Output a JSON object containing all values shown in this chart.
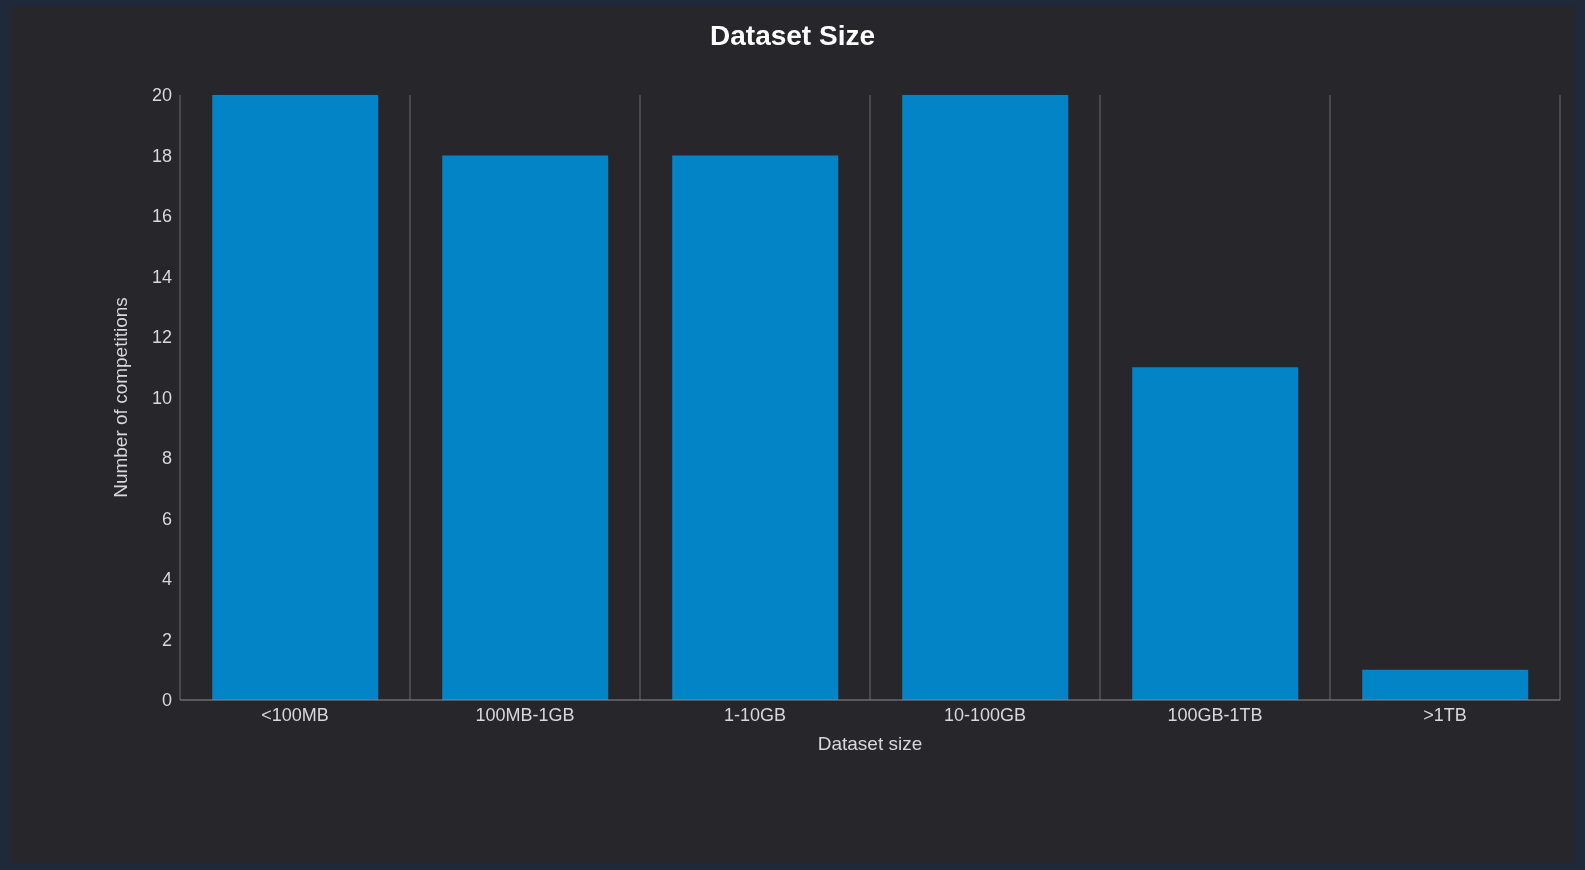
{
  "chart_data": {
    "type": "bar",
    "title": "Dataset Size",
    "xlabel": "Dataset size",
    "ylabel": "Number of competitions",
    "categories": [
      "<100MB",
      "100MB-1GB",
      "1-10GB",
      "10-100GB",
      "100GB-1TB",
      ">1TB"
    ],
    "values": [
      20,
      18,
      18,
      20,
      11,
      1
    ],
    "color": "#0284c7",
    "ylim": [
      0,
      20
    ],
    "yticks": [
      0,
      2,
      4,
      6,
      8,
      10,
      12,
      14,
      16,
      18,
      20
    ],
    "grid": "x",
    "legend": false
  }
}
